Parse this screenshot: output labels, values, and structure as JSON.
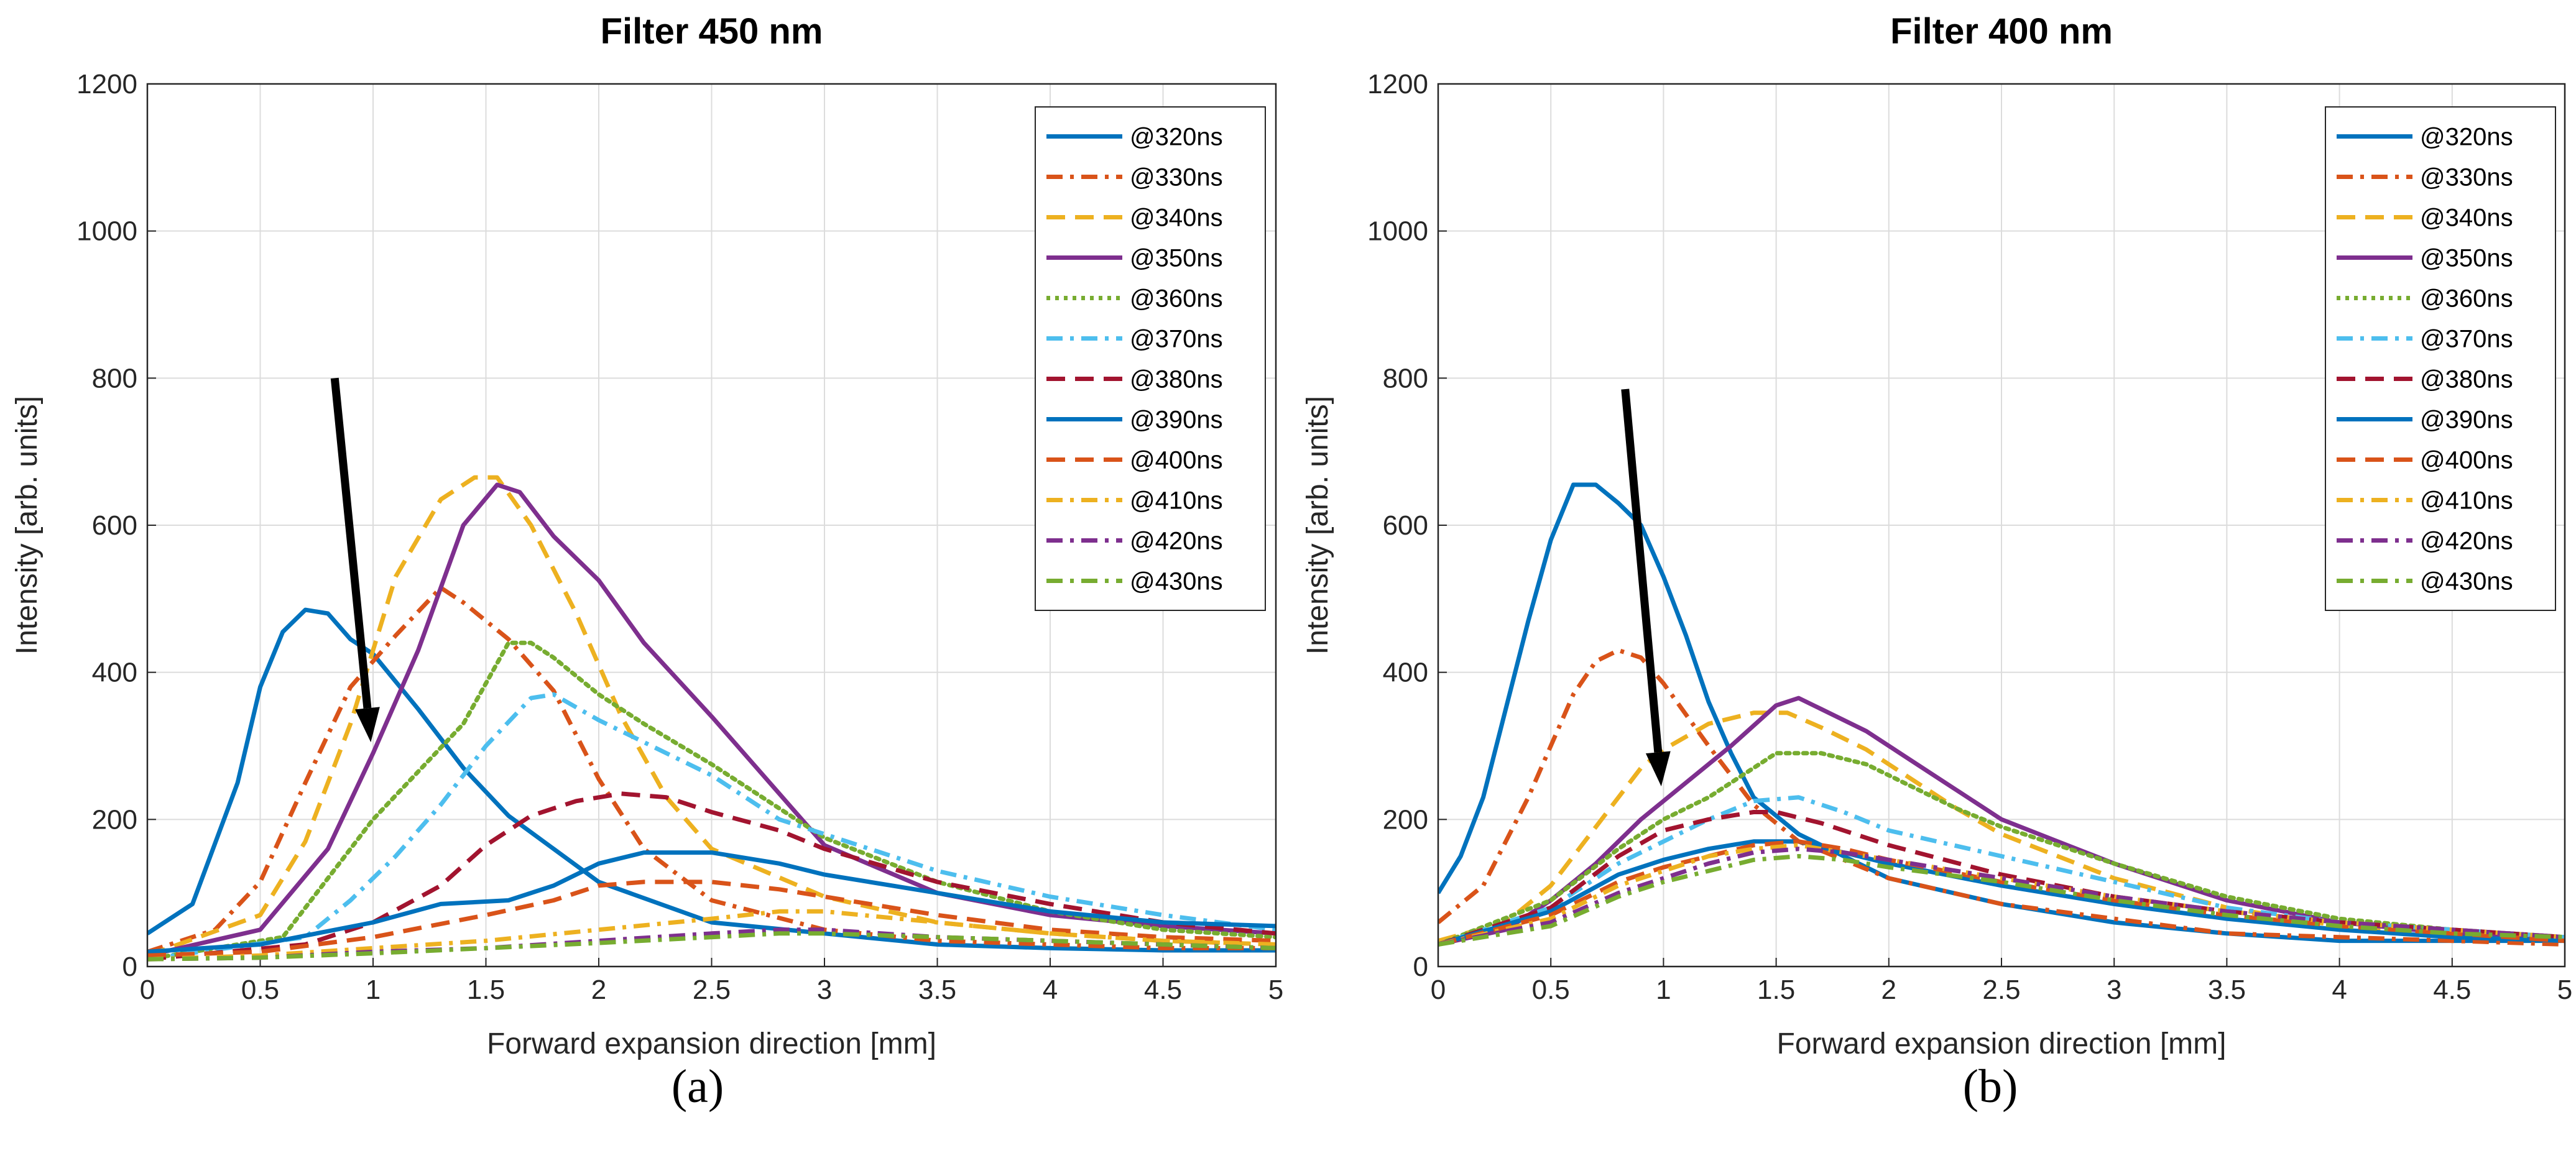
{
  "captions": [
    "(a)",
    "(b)"
  ],
  "legend_labels": [
    "@320ns",
    "@330ns",
    "@340ns",
    "@350ns",
    "@360ns",
    "@370ns",
    "@380ns",
    "@390ns",
    "@400ns",
    "@410ns",
    "@420ns",
    "@430ns"
  ],
  "series_styles": [
    {
      "color": "#0072BD",
      "dash": "solid"
    },
    {
      "color": "#D95319",
      "dash": "dashdot"
    },
    {
      "color": "#EDB120",
      "dash": "dashed"
    },
    {
      "color": "#7E2F8E",
      "dash": "solid"
    },
    {
      "color": "#77AC30",
      "dash": "dotted"
    },
    {
      "color": "#4DBEEE",
      "dash": "dashdot"
    },
    {
      "color": "#A2142F",
      "dash": "dashed"
    },
    {
      "color": "#0072BD",
      "dash": "solid"
    },
    {
      "color": "#D95319",
      "dash": "dashed"
    },
    {
      "color": "#EDB120",
      "dash": "dashdot"
    },
    {
      "color": "#7E2F8E",
      "dash": "dashdot"
    },
    {
      "color": "#77AC30",
      "dash": "dashdot"
    }
  ],
  "chart_data": [
    {
      "type": "line",
      "title": "Filter 450 nm",
      "xlabel": "Forward expansion direction [mm]",
      "ylabel": "Intensity [arb. units]",
      "xlim": [
        0,
        5
      ],
      "ylim": [
        0,
        1200
      ],
      "xticks": [
        "0",
        "0.5",
        "1",
        "1.5",
        "2",
        "2.5",
        "3",
        "3.5",
        "4",
        "4.5",
        "5"
      ],
      "yticks": [
        "0",
        "200",
        "400",
        "600",
        "800",
        "1000",
        "1200"
      ],
      "grid": true,
      "legend_position": "top-right",
      "arrow": {
        "from": [
          0.83,
          800
        ],
        "to": [
          0.99,
          305
        ]
      },
      "series": [
        {
          "name": "@320ns",
          "x": [
            0,
            0.2,
            0.4,
            0.5,
            0.6,
            0.7,
            0.8,
            0.9,
            1.0,
            1.2,
            1.4,
            1.6,
            1.8,
            2.0,
            2.5,
            3.0,
            3.5,
            4.0,
            4.5,
            5.0
          ],
          "y": [
            45,
            85,
            250,
            380,
            455,
            485,
            480,
            445,
            425,
            350,
            270,
            205,
            160,
            115,
            60,
            45,
            30,
            25,
            22,
            22
          ]
        },
        {
          "name": "@330ns",
          "x": [
            0,
            0.3,
            0.5,
            0.7,
            0.9,
            1.1,
            1.3,
            1.4,
            1.6,
            1.8,
            2.0,
            2.2,
            2.5,
            3.0,
            3.5,
            4.0,
            4.5,
            5.0
          ],
          "y": [
            20,
            50,
            115,
            250,
            380,
            450,
            515,
            495,
            445,
            375,
            255,
            160,
            90,
            50,
            35,
            30,
            25,
            25
          ]
        },
        {
          "name": "@340ns",
          "x": [
            0,
            0.5,
            0.7,
            0.9,
            1.1,
            1.3,
            1.45,
            1.55,
            1.7,
            1.9,
            2.1,
            2.3,
            2.5,
            3.0,
            3.5,
            4.0,
            4.5,
            5.0
          ],
          "y": [
            15,
            70,
            170,
            330,
            530,
            635,
            665,
            665,
            600,
            480,
            340,
            230,
            160,
            95,
            60,
            45,
            35,
            30
          ]
        },
        {
          "name": "@350ns",
          "x": [
            0,
            0.5,
            0.8,
            1.0,
            1.2,
            1.4,
            1.55,
            1.65,
            1.8,
            2.0,
            2.2,
            2.5,
            2.7,
            3.0,
            3.5,
            4.0,
            4.5,
            5.0
          ],
          "y": [
            15,
            50,
            160,
            290,
            430,
            600,
            655,
            645,
            585,
            525,
            440,
            340,
            270,
            165,
            100,
            70,
            55,
            45
          ]
        },
        {
          "name": "@360ns",
          "x": [
            0,
            0.6,
            0.8,
            1.0,
            1.2,
            1.4,
            1.6,
            1.7,
            1.8,
            2.0,
            2.2,
            2.5,
            3.0,
            3.5,
            4.0,
            4.5,
            5.0
          ],
          "y": [
            10,
            40,
            120,
            200,
            265,
            330,
            440,
            440,
            420,
            370,
            330,
            275,
            175,
            115,
            75,
            50,
            40
          ]
        },
        {
          "name": "@370ns",
          "x": [
            0,
            0.7,
            0.9,
            1.1,
            1.3,
            1.5,
            1.7,
            1.8,
            2.0,
            2.2,
            2.5,
            2.8,
            3.0,
            3.5,
            4.0,
            4.5,
            5.0
          ],
          "y": [
            10,
            40,
            90,
            150,
            220,
            300,
            365,
            370,
            335,
            305,
            260,
            200,
            180,
            130,
            95,
            70,
            50
          ]
        },
        {
          "name": "@380ns",
          "x": [
            0,
            0.7,
            1.0,
            1.3,
            1.5,
            1.7,
            1.9,
            2.1,
            2.3,
            2.5,
            2.8,
            3.0,
            3.5,
            4.0,
            4.5,
            5.0
          ],
          "y": [
            10,
            30,
            60,
            110,
            165,
            205,
            225,
            235,
            230,
            210,
            185,
            160,
            115,
            85,
            60,
            45
          ]
        },
        {
          "name": "@390ns",
          "x": [
            0,
            0.5,
            1.0,
            1.3,
            1.6,
            1.8,
            2.0,
            2.2,
            2.5,
            2.8,
            3.0,
            3.5,
            4.0,
            4.5,
            5.0
          ],
          "y": [
            20,
            30,
            60,
            85,
            90,
            110,
            140,
            155,
            155,
            140,
            125,
            100,
            75,
            60,
            55
          ]
        },
        {
          "name": "@400ns",
          "x": [
            0,
            0.5,
            1.0,
            1.5,
            1.8,
            2.0,
            2.2,
            2.5,
            2.8,
            3.0,
            3.5,
            4.0,
            4.5,
            5.0
          ],
          "y": [
            15,
            20,
            40,
            70,
            90,
            110,
            115,
            115,
            105,
            95,
            70,
            50,
            40,
            35
          ]
        },
        {
          "name": "@410ns",
          "x": [
            0,
            0.5,
            1.0,
            1.5,
            2.0,
            2.5,
            2.8,
            3.0,
            3.5,
            4.0,
            4.5,
            5.0
          ],
          "y": [
            10,
            15,
            25,
            35,
            50,
            65,
            75,
            75,
            60,
            45,
            35,
            30
          ]
        },
        {
          "name": "@420ns",
          "x": [
            0,
            0.5,
            1.0,
            1.5,
            2.0,
            2.5,
            2.8,
            3.0,
            3.5,
            4.0,
            4.5,
            5.0
          ],
          "y": [
            10,
            12,
            20,
            25,
            35,
            45,
            50,
            50,
            40,
            35,
            30,
            25
          ]
        },
        {
          "name": "@430ns",
          "x": [
            0,
            0.5,
            1.0,
            1.5,
            2.0,
            2.5,
            2.8,
            3.0,
            3.5,
            4.0,
            4.5,
            5.0
          ],
          "y": [
            10,
            12,
            18,
            25,
            32,
            40,
            45,
            45,
            40,
            35,
            30,
            25
          ]
        }
      ]
    },
    {
      "type": "line",
      "title": "Filter 400 nm",
      "xlabel": "Forward expansion direction [mm]",
      "ylabel": "Intensity [arb. units]",
      "xlim": [
        0,
        5
      ],
      "ylim": [
        0,
        1200
      ],
      "xticks": [
        "0",
        "0.5",
        "1",
        "1.5",
        "2",
        "2.5",
        "3",
        "3.5",
        "4",
        "4.5",
        "5"
      ],
      "yticks": [
        "0",
        "200",
        "400",
        "600",
        "800",
        "1000",
        "1200"
      ],
      "grid": true,
      "legend_position": "top-right",
      "arrow": {
        "from": [
          0.83,
          785
        ],
        "to": [
          0.99,
          245
        ]
      },
      "series": [
        {
          "name": "@320ns",
          "x": [
            0,
            0.1,
            0.2,
            0.3,
            0.4,
            0.5,
            0.6,
            0.7,
            0.8,
            0.9,
            1.0,
            1.1,
            1.2,
            1.3,
            1.4,
            1.6,
            1.8,
            2.0,
            2.5,
            3.0,
            3.5,
            4.0,
            4.5,
            5.0
          ],
          "y": [
            100,
            150,
            230,
            350,
            470,
            580,
            655,
            655,
            630,
            600,
            530,
            450,
            360,
            290,
            230,
            180,
            150,
            120,
            85,
            60,
            45,
            35,
            35,
            35
          ]
        },
        {
          "name": "@330ns",
          "x": [
            0,
            0.2,
            0.4,
            0.6,
            0.7,
            0.8,
            0.9,
            1.0,
            1.2,
            1.4,
            1.6,
            1.8,
            2.0,
            2.5,
            3.0,
            3.5,
            4.0,
            4.5,
            5.0
          ],
          "y": [
            60,
            110,
            230,
            370,
            415,
            430,
            420,
            385,
            300,
            220,
            170,
            145,
            120,
            85,
            65,
            45,
            40,
            35,
            30
          ]
        },
        {
          "name": "@340ns",
          "x": [
            0,
            0.3,
            0.5,
            0.7,
            0.9,
            1.0,
            1.2,
            1.4,
            1.55,
            1.7,
            1.9,
            2.1,
            2.3,
            2.5,
            3.0,
            3.5,
            4.0,
            4.5,
            5.0
          ],
          "y": [
            35,
            60,
            110,
            190,
            270,
            295,
            330,
            345,
            345,
            325,
            295,
            255,
            215,
            180,
            120,
            80,
            55,
            45,
            40
          ]
        },
        {
          "name": "@350ns",
          "x": [
            0,
            0.3,
            0.5,
            0.7,
            0.9,
            1.1,
            1.3,
            1.5,
            1.6,
            1.7,
            1.9,
            2.1,
            2.3,
            2.5,
            3.0,
            3.5,
            4.0,
            4.5,
            5.0
          ],
          "y": [
            30,
            50,
            90,
            140,
            200,
            250,
            300,
            355,
            365,
            350,
            320,
            280,
            240,
            200,
            140,
            90,
            60,
            45,
            40
          ]
        },
        {
          "name": "@360ns",
          "x": [
            0,
            0.5,
            0.8,
            1.0,
            1.2,
            1.4,
            1.5,
            1.7,
            1.9,
            2.1,
            2.3,
            2.5,
            3.0,
            3.5,
            4.0,
            4.5,
            5.0
          ],
          "y": [
            30,
            90,
            160,
            200,
            230,
            270,
            290,
            290,
            275,
            245,
            215,
            190,
            140,
            95,
            65,
            50,
            40
          ]
        },
        {
          "name": "@370ns",
          "x": [
            0,
            0.5,
            0.8,
            1.0,
            1.2,
            1.4,
            1.6,
            1.8,
            2.0,
            2.5,
            3.0,
            3.5,
            4.0,
            4.5,
            5.0
          ],
          "y": [
            30,
            80,
            140,
            170,
            200,
            225,
            230,
            210,
            185,
            150,
            115,
            80,
            60,
            50,
            40
          ]
        },
        {
          "name": "@380ns",
          "x": [
            0,
            0.5,
            0.8,
            1.0,
            1.2,
            1.4,
            1.5,
            1.7,
            2.0,
            2.5,
            3.0,
            3.5,
            4.0,
            4.5,
            5.0
          ],
          "y": [
            30,
            80,
            150,
            185,
            200,
            210,
            210,
            195,
            165,
            125,
            95,
            75,
            60,
            50,
            40
          ]
        },
        {
          "name": "@390ns",
          "x": [
            0,
            0.5,
            0.8,
            1.0,
            1.2,
            1.4,
            1.6,
            1.8,
            2.0,
            2.5,
            3.0,
            3.5,
            4.0,
            4.5,
            5.0
          ],
          "y": [
            30,
            75,
            125,
            145,
            160,
            170,
            170,
            155,
            140,
            110,
            85,
            65,
            50,
            40,
            35
          ]
        },
        {
          "name": "@400ns",
          "x": [
            0,
            0.5,
            0.8,
            1.0,
            1.2,
            1.4,
            1.6,
            1.8,
            2.0,
            2.5,
            3.0,
            3.5,
            4.0,
            4.5,
            5.0
          ],
          "y": [
            30,
            70,
            115,
            135,
            150,
            165,
            170,
            160,
            145,
            115,
            90,
            70,
            55,
            45,
            35
          ]
        },
        {
          "name": "@410ns",
          "x": [
            0,
            0.5,
            0.8,
            1.0,
            1.2,
            1.4,
            1.6,
            1.8,
            2.0,
            2.5,
            3.0,
            3.5,
            4.0,
            4.5,
            5.0
          ],
          "y": [
            30,
            65,
            110,
            130,
            150,
            160,
            165,
            155,
            145,
            120,
            95,
            75,
            60,
            50,
            40
          ]
        },
        {
          "name": "@420ns",
          "x": [
            0,
            0.5,
            0.8,
            1.0,
            1.2,
            1.4,
            1.6,
            1.8,
            2.0,
            2.5,
            3.0,
            3.5,
            4.0,
            4.5,
            5.0
          ],
          "y": [
            30,
            60,
            100,
            120,
            140,
            155,
            160,
            155,
            145,
            120,
            95,
            75,
            60,
            50,
            40
          ]
        },
        {
          "name": "@430ns",
          "x": [
            0,
            0.5,
            0.8,
            1.0,
            1.2,
            1.4,
            1.6,
            1.8,
            2.0,
            2.5,
            3.0,
            3.5,
            4.0,
            4.5,
            5.0
          ],
          "y": [
            30,
            55,
            95,
            115,
            130,
            145,
            150,
            145,
            135,
            115,
            90,
            70,
            55,
            45,
            40
          ]
        }
      ]
    }
  ]
}
